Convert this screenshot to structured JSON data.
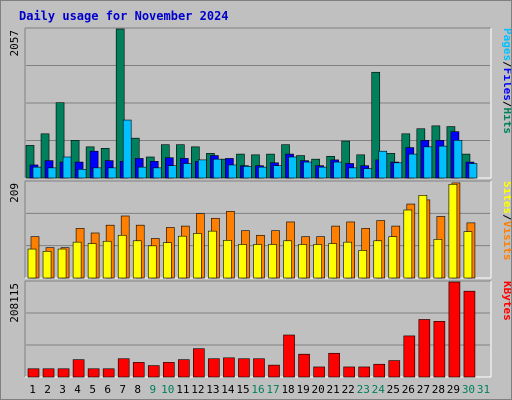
{
  "title": "Daily usage for November 2024",
  "colors": {
    "background": "#c0c0c0",
    "title": "#0000cc",
    "hits": "#00805c",
    "files": "#0000ff",
    "pages": "#00c0ff",
    "visits": "#ff8000",
    "sites": "#ffff00",
    "kbytes": "#ff0000",
    "weekday_label": "#000000",
    "weekend_label": "#00805c"
  },
  "chart_data": [
    {
      "type": "bar",
      "name": "hits-files-pages",
      "categories": [
        "1",
        "2",
        "3",
        "4",
        "5",
        "6",
        "7",
        "8",
        "9",
        "10",
        "11",
        "12",
        "13",
        "14",
        "15",
        "16",
        "17",
        "18",
        "19",
        "20",
        "21",
        "22",
        "23",
        "24",
        "25",
        "26",
        "27",
        "28",
        "29",
        "30",
        "31"
      ],
      "max_label": "2057",
      "ylim": [
        0,
        2057
      ],
      "axis_label_parts": [
        "Pages",
        "Files",
        "Hits"
      ],
      "series": [
        {
          "name": "Hits",
          "values": [
            450,
            610,
            1040,
            520,
            430,
            410,
            2057,
            550,
            290,
            460,
            460,
            430,
            340,
            260,
            330,
            320,
            330,
            460,
            310,
            260,
            300,
            510,
            320,
            1460,
            340,
            610,
            680,
            720,
            710,
            330,
            0
          ]
        },
        {
          "name": "Files",
          "values": [
            180,
            240,
            220,
            220,
            370,
            240,
            230,
            270,
            230,
            280,
            270,
            230,
            310,
            270,
            170,
            170,
            210,
            330,
            240,
            170,
            250,
            200,
            170,
            250,
            220,
            420,
            520,
            520,
            640,
            220,
            0
          ]
        },
        {
          "name": "Pages",
          "values": [
            150,
            140,
            290,
            120,
            140,
            140,
            800,
            150,
            140,
            170,
            200,
            250,
            260,
            180,
            160,
            150,
            170,
            290,
            220,
            150,
            220,
            140,
            130,
            370,
            210,
            330,
            430,
            440,
            520,
            200,
            0
          ]
        }
      ]
    },
    {
      "type": "bar",
      "name": "visits-sites",
      "categories": [
        "1",
        "2",
        "3",
        "4",
        "5",
        "6",
        "7",
        "8",
        "9",
        "10",
        "11",
        "12",
        "13",
        "14",
        "15",
        "16",
        "17",
        "18",
        "19",
        "20",
        "21",
        "22",
        "23",
        "24",
        "25",
        "26",
        "27",
        "28",
        "29",
        "30",
        "31"
      ],
      "max_label": "209",
      "ylim": [
        0,
        209
      ],
      "axis_label_parts": [
        "Sites",
        "Visits"
      ],
      "series": [
        {
          "name": "Visits",
          "values": [
            90,
            66,
            66,
            108,
            98,
            115,
            135,
            115,
            86,
            110,
            113,
            140,
            130,
            145,
            103,
            93,
            103,
            122,
            90,
            90,
            113,
            122,
            108,
            125,
            113,
            161,
            170,
            134,
            207,
            120,
            0
          ]
        },
        {
          "name": "Sites",
          "values": [
            63,
            58,
            63,
            78,
            75,
            80,
            93,
            81,
            70,
            77,
            91,
            97,
            102,
            82,
            73,
            73,
            73,
            81,
            73,
            73,
            75,
            78,
            60,
            81,
            90,
            148,
            180,
            84,
            204,
            101,
            0
          ]
        }
      ]
    },
    {
      "type": "bar",
      "name": "kbytes",
      "categories": [
        "1",
        "2",
        "3",
        "4",
        "5",
        "6",
        "7",
        "8",
        "9",
        "10",
        "11",
        "12",
        "13",
        "14",
        "15",
        "16",
        "17",
        "18",
        "19",
        "20",
        "21",
        "22",
        "23",
        "24",
        "25",
        "26",
        "27",
        "28",
        "29",
        "30",
        "31"
      ],
      "max_label": "208115",
      "ylim": [
        0,
        208115
      ],
      "axis_label_parts": [
        "KBytes"
      ],
      "series": [
        {
          "name": "KBytes",
          "values": [
            18000,
            18000,
            18000,
            38000,
            18000,
            18000,
            40000,
            32000,
            25000,
            32000,
            38000,
            62000,
            40000,
            42000,
            40000,
            40000,
            26000,
            92000,
            50000,
            22000,
            52000,
            22000,
            22000,
            28000,
            36000,
            90000,
            126000,
            122000,
            208115,
            188000,
            0
          ]
        }
      ]
    }
  ],
  "x_labels": [
    {
      "text": "1",
      "weekend": false
    },
    {
      "text": "2",
      "weekend": false
    },
    {
      "text": "3",
      "weekend": false
    },
    {
      "text": "4",
      "weekend": false
    },
    {
      "text": "5",
      "weekend": false
    },
    {
      "text": "6",
      "weekend": false
    },
    {
      "text": "7",
      "weekend": false
    },
    {
      "text": "8",
      "weekend": false
    },
    {
      "text": "9",
      "weekend": true
    },
    {
      "text": "10",
      "weekend": true
    },
    {
      "text": "11",
      "weekend": false
    },
    {
      "text": "12",
      "weekend": false
    },
    {
      "text": "13",
      "weekend": false
    },
    {
      "text": "14",
      "weekend": false
    },
    {
      "text": "15",
      "weekend": false
    },
    {
      "text": "16",
      "weekend": true
    },
    {
      "text": "17",
      "weekend": true
    },
    {
      "text": "18",
      "weekend": false
    },
    {
      "text": "19",
      "weekend": false
    },
    {
      "text": "20",
      "weekend": false
    },
    {
      "text": "21",
      "weekend": false
    },
    {
      "text": "22",
      "weekend": false
    },
    {
      "text": "23",
      "weekend": true
    },
    {
      "text": "24",
      "weekend": true
    },
    {
      "text": "25",
      "weekend": false
    },
    {
      "text": "26",
      "weekend": false
    },
    {
      "text": "27",
      "weekend": false
    },
    {
      "text": "28",
      "weekend": false
    },
    {
      "text": "29",
      "weekend": false
    },
    {
      "text": "30",
      "weekend": true
    },
    {
      "text": "31",
      "weekend": true
    }
  ]
}
